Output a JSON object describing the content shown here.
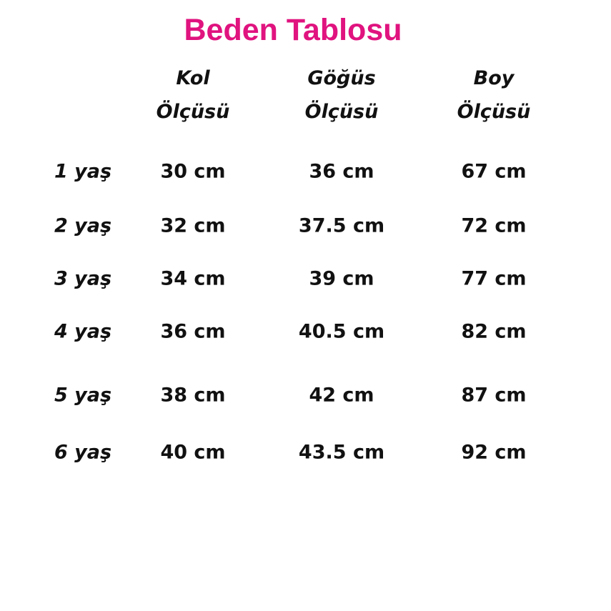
{
  "title": "Beden Tablosu",
  "colors": {
    "title": "#e0137f",
    "text": "#111111"
  },
  "headers": [
    {
      "line1": "Kol",
      "line2": "Ölçüsü"
    },
    {
      "line1": "Göğüs",
      "line2": "Ölçüsü"
    },
    {
      "line1": "Boy",
      "line2": "Ölçüsü"
    }
  ],
  "rows": [
    {
      "label": "1 yaş",
      "values": [
        "30 cm",
        "36 cm",
        "67 cm"
      ]
    },
    {
      "label": "2 yaş",
      "values": [
        "32 cm",
        "37.5 cm",
        "72 cm"
      ]
    },
    {
      "label": "3 yaş",
      "values": [
        "34 cm",
        "39 cm",
        "77 cm"
      ]
    },
    {
      "label": "4 yaş",
      "values": [
        "36 cm",
        "40.5 cm",
        "82 cm"
      ]
    },
    {
      "label": "5 yaş",
      "values": [
        "38 cm",
        "42 cm",
        "87 cm"
      ]
    },
    {
      "label": "6 yaş",
      "values": [
        "40 cm",
        "43.5 cm",
        "92 cm"
      ]
    }
  ]
}
